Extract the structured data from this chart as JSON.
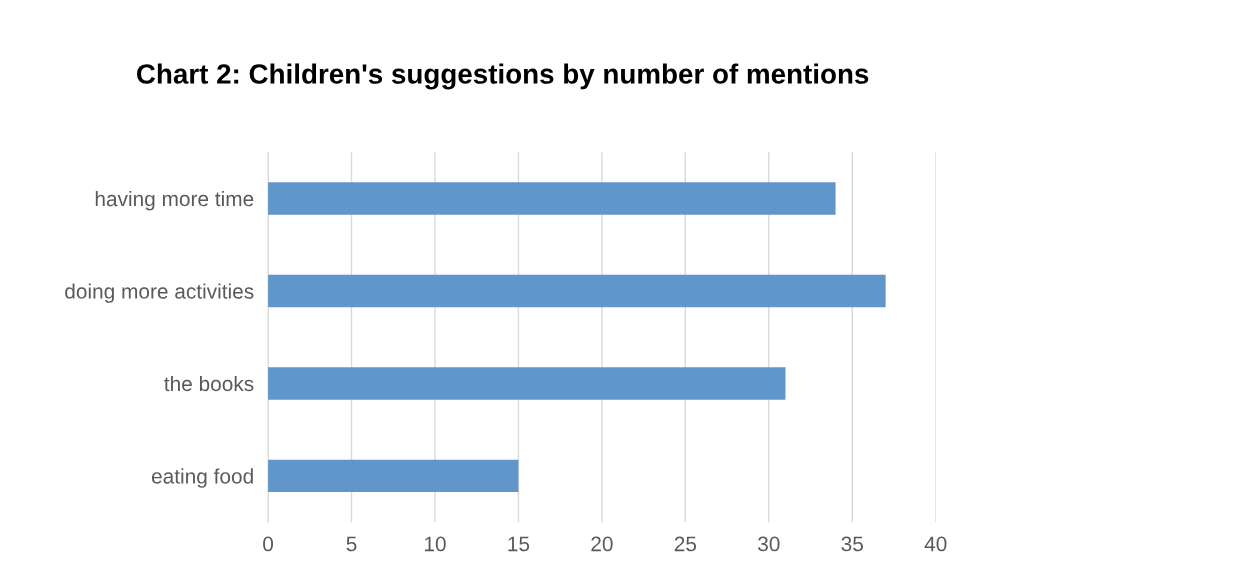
{
  "chart_data": {
    "type": "bar",
    "orientation": "horizontal",
    "title": "Chart 2: Children's suggestions by number of mentions",
    "categories": [
      "having more time",
      "doing more activities",
      "the books",
      "eating food"
    ],
    "values": [
      34,
      37,
      31,
      15
    ],
    "color": "#6096c9",
    "xlim": [
      0,
      40
    ],
    "xticks": [
      0,
      5,
      10,
      15,
      20,
      25,
      30,
      35,
      40
    ],
    "grid": "x",
    "legend": false
  }
}
